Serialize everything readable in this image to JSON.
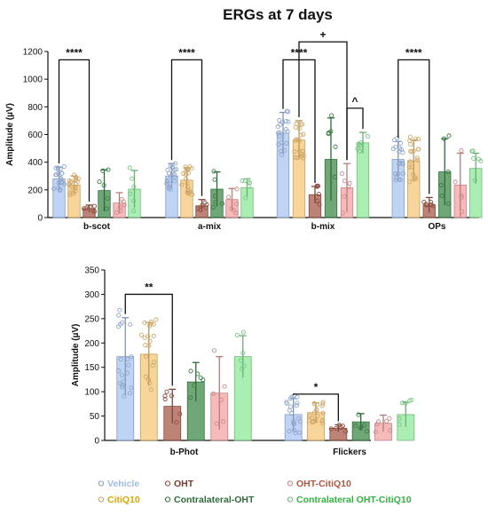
{
  "title": "ERGs at 7 days",
  "colors": {
    "Vehicle": "#a9c4f0",
    "CitiQ10": "#f5c77a",
    "OHT": "#a85a4a",
    "Contralateral-OHT": "#3f8a4a",
    "OHT-CitiQ10": "#f4a3a3",
    "Contralateral OHT-CitiQ10": "#8ee89a"
  },
  "legend": [
    {
      "name": "Vehicle",
      "color": "#9fbbe8"
    },
    {
      "name": "OHT",
      "color": "#7a3a2c"
    },
    {
      "name": "OHT-CitiQ10",
      "color": "#b5533f"
    },
    {
      "name": "CitiQ10",
      "color": "#d9a600"
    },
    {
      "name": "Contralateral-OHT",
      "color": "#2f6b38"
    },
    {
      "name": "Contralateral OHT-CitiQ10",
      "color": "#2fb33d"
    }
  ],
  "chart_data": [
    {
      "type": "bar",
      "panel": "top",
      "ylabel": "Amplitude (µV)",
      "ylim": [
        0,
        1200
      ],
      "yticks": [
        0,
        200,
        400,
        600,
        800,
        1000,
        1200
      ],
      "categories": [
        "b-scot",
        "a-mix",
        "b-mix",
        "OPs"
      ],
      "series": [
        {
          "name": "Vehicle",
          "values": [
            280,
            300,
            610,
            420
          ],
          "errors": [
            85,
            90,
            150,
            130
          ]
        },
        {
          "name": "CitiQ10",
          "values": [
            235,
            270,
            560,
            410
          ],
          "errors": [
            65,
            90,
            140,
            150
          ]
        },
        {
          "name": "OHT",
          "values": [
            65,
            85,
            165,
            90
          ],
          "errors": [
            25,
            45,
            60,
            55
          ]
        },
        {
          "name": "Contralateral-OHT",
          "values": [
            195,
            205,
            420,
            330
          ],
          "errors": [
            150,
            125,
            300,
            240
          ]
        },
        {
          "name": "OHT-CitiQ10",
          "values": [
            105,
            130,
            215,
            235
          ],
          "errors": [
            75,
            80,
            175,
            230
          ]
        },
        {
          "name": "Contralateral OHT-CitiQ10",
          "values": [
            205,
            215,
            540,
            355
          ],
          "errors": [
            135,
            65,
            75,
            110
          ]
        }
      ],
      "significance": [
        {
          "label": "****",
          "category": "b-scot",
          "from": "Vehicle",
          "to": "OHT",
          "y": 1140
        },
        {
          "label": "****",
          "category": "a-mix",
          "from": "Vehicle",
          "to": "OHT",
          "y": 1140
        },
        {
          "label": "****",
          "category": "b-mix",
          "from": "Vehicle",
          "to": "OHT",
          "y": 1140
        },
        {
          "label": "+",
          "category": "b-mix",
          "from": "CitiQ10",
          "to": "OHT-CitiQ10",
          "y": 1270
        },
        {
          "label": "^",
          "category": "b-mix",
          "from": "OHT-CitiQ10",
          "to": "Contralateral OHT-CitiQ10",
          "y": 790
        },
        {
          "label": "****",
          "category": "OPs",
          "from": "Vehicle",
          "to": "OHT",
          "y": 1140
        }
      ]
    },
    {
      "type": "bar",
      "panel": "bottom",
      "ylabel": "Amplitude (µV)",
      "ylim": [
        0,
        350
      ],
      "yticks": [
        0,
        50,
        100,
        150,
        200,
        250,
        300,
        350
      ],
      "categories": [
        "b-Phot",
        "Flickers"
      ],
      "series": [
        {
          "name": "Vehicle",
          "values": [
            172,
            53
          ],
          "errors": [
            80,
            33
          ]
        },
        {
          "name": "CitiQ10",
          "values": [
            177,
            57
          ],
          "errors": [
            65,
            20
          ]
        },
        {
          "name": "OHT",
          "values": [
            70,
            25
          ],
          "errors": [
            35,
            7
          ]
        },
        {
          "name": "Contralateral-OHT",
          "values": [
            120,
            38
          ],
          "errors": [
            40,
            17
          ]
        },
        {
          "name": "OHT-CitiQ10",
          "values": [
            97,
            35
          ],
          "errors": [
            75,
            17
          ]
        },
        {
          "name": "Contralateral OHT-CitiQ10",
          "values": [
            172,
            53
          ],
          "errors": [
            43,
            25
          ]
        }
      ],
      "significance": [
        {
          "label": "**",
          "category": "b-Phot",
          "from": "Vehicle",
          "to": "OHT",
          "y": 300
        },
        {
          "label": "*",
          "category": "Flickers",
          "from": "Vehicle",
          "to": "OHT",
          "y": 95
        }
      ]
    }
  ]
}
